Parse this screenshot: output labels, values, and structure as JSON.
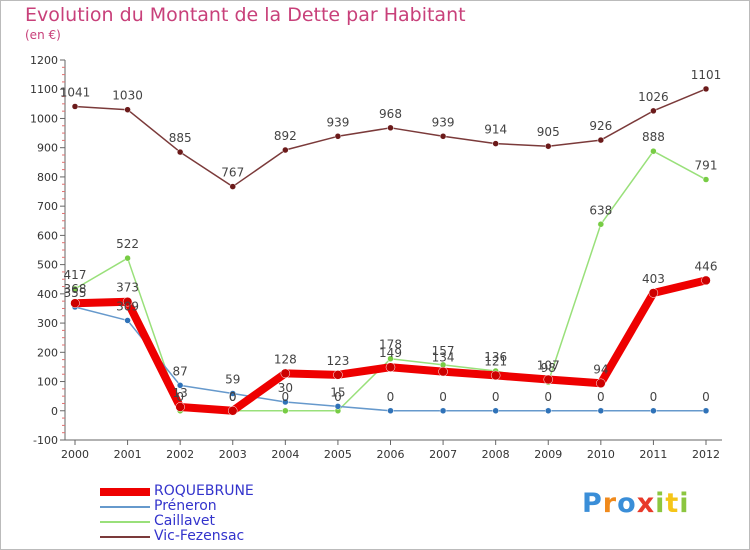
{
  "header": {
    "title": "Evolution du Montant de la Dette par Habitant",
    "unit": "(en €)"
  },
  "brand": {
    "name": "Proxiti",
    "colors": [
      "#3a8ed8",
      "#f08a1c",
      "#3a8ed8",
      "#e83a2a",
      "#8cc63f",
      "#f5c518",
      "#8cc63f"
    ]
  },
  "chart_data": {
    "type": "line",
    "x": [
      "2000",
      "2001",
      "2002",
      "2003",
      "2004",
      "2005",
      "2006",
      "2007",
      "2008",
      "2009",
      "2010",
      "2011",
      "2012"
    ],
    "ylim": [
      -100,
      1200
    ],
    "yticks": [
      "-100",
      "0",
      "100",
      "200",
      "300",
      "400",
      "500",
      "600",
      "700",
      "800",
      "900",
      "1000",
      "1100",
      "1200"
    ],
    "grid": false,
    "legend_position": "bottom-left",
    "series": [
      {
        "name": "ROQUEBRUNE",
        "color": "#ee0000",
        "marker_color": "#cc0000",
        "width": 8,
        "values": [
          368,
          373,
          13,
          0,
          128,
          123,
          149,
          134,
          121,
          107,
          94,
          403,
          446
        ],
        "labels": [
          "368",
          "373",
          "13",
          "0",
          "128",
          "123",
          "149",
          "134",
          "121",
          "107",
          "94",
          "403",
          "446"
        ]
      },
      {
        "name": "Préneron",
        "color": "#6699cc",
        "marker_color": "#2f72b8",
        "width": 1.5,
        "values": [
          355,
          309,
          87,
          59,
          30,
          15,
          0,
          0,
          0,
          0,
          0,
          0,
          0
        ],
        "labels": [
          "355",
          "309",
          "87",
          "59",
          "30",
          "15",
          "0",
          "0",
          "0",
          "0",
          "0",
          "0",
          "0"
        ]
      },
      {
        "name": "Caillavet",
        "color": "#99e07a",
        "marker_color": "#77cc44",
        "width": 1.5,
        "values": [
          417,
          522,
          0,
          0,
          0,
          0,
          178,
          157,
          136,
          98,
          638,
          888,
          791
        ],
        "labels": [
          "417",
          "522",
          "0",
          "0",
          "0",
          "0",
          "178",
          "157",
          "136",
          "98",
          "638",
          "888",
          "791"
        ]
      },
      {
        "name": "Vic-Fezensac",
        "color": "#7b3a3a",
        "marker_color": "#6b1a1a",
        "width": 1.5,
        "values": [
          1041,
          1030,
          885,
          767,
          892,
          939,
          968,
          939,
          914,
          905,
          926,
          1026,
          1101
        ],
        "labels": [
          "1041",
          "1030",
          "885",
          "767",
          "892",
          "939",
          "968",
          "939",
          "914",
          "905",
          "926",
          "1026",
          "1101"
        ]
      }
    ]
  }
}
